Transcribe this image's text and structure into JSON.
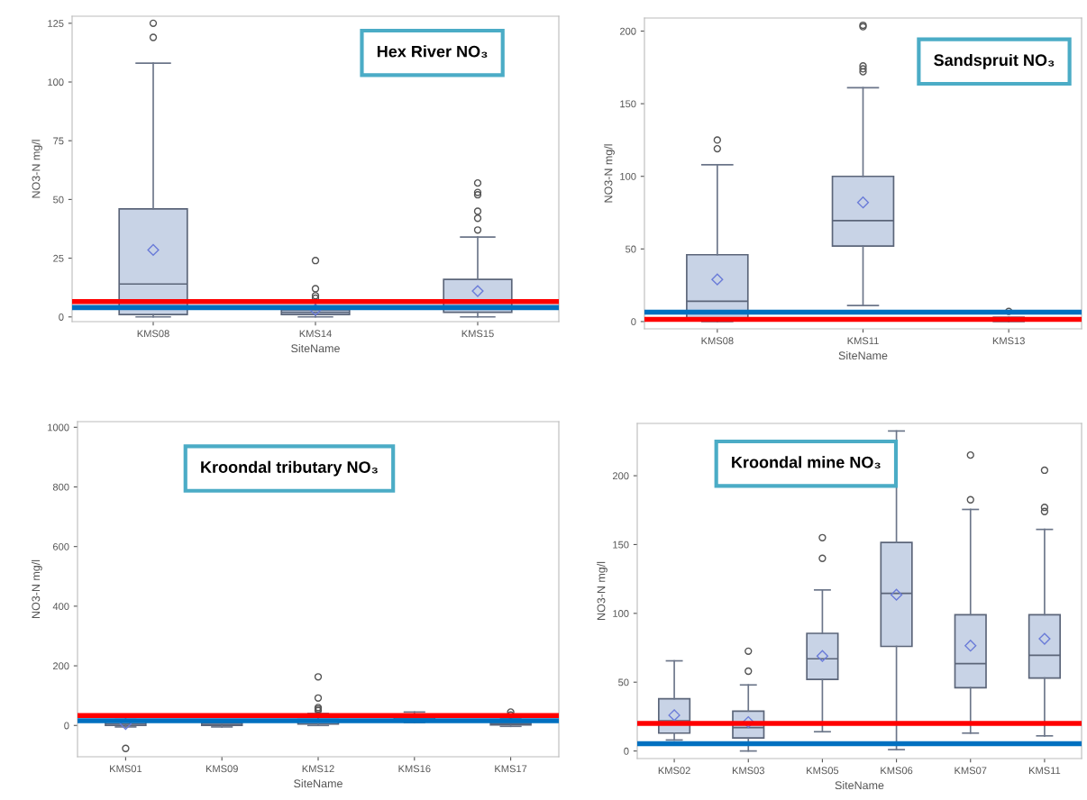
{
  "chart_data": [
    {
      "type": "box",
      "title": "Hex River NO₃",
      "xlabel": "SiteName",
      "ylabel": "NO3-N mg/l",
      "categories": [
        "KMS08",
        "KMS14",
        "KMS15"
      ],
      "ylim": [
        -2,
        128
      ],
      "yticks": [
        0,
        25,
        50,
        75,
        100,
        125
      ],
      "grid": false,
      "series": [
        {
          "color": "#c8d3e6",
          "boxes": [
            {
              "low": 0,
              "q1": 1,
              "median": 14,
              "q3": 46,
              "high": 108,
              "mean": 28.5,
              "outliers": [
                119,
                125
              ]
            },
            {
              "low": 0,
              "q1": 1,
              "median": 2,
              "q3": 3,
              "high": 7,
              "mean": 3,
              "outliers": [
                8,
                9,
                12,
                24
              ]
            },
            {
              "low": 0,
              "q1": 2,
              "median": 6,
              "q3": 16,
              "high": 34,
              "mean": 11,
              "outliers": [
                37,
                42,
                45,
                52,
                53,
                57
              ]
            }
          ]
        }
      ],
      "ref_lines": [
        {
          "axis": "y",
          "value": 6.5,
          "color": "#ff0000"
        },
        {
          "axis": "y",
          "value": 4,
          "color": "#0070c0"
        }
      ]
    },
    {
      "type": "box",
      "title": "Sandspruit NO₃",
      "xlabel": "SiteName",
      "ylabel": "NO3-N mg/l",
      "categories": [
        "KMS08",
        "KMS11",
        "KMS13"
      ],
      "ylim": [
        -5,
        209
      ],
      "yticks": [
        0,
        50,
        100,
        150,
        200
      ],
      "grid": false,
      "series": [
        {
          "color": "#c8d3e6",
          "boxes": [
            {
              "low": 0,
              "q1": 1,
              "median": 14,
              "q3": 46,
              "high": 108,
              "mean": 29,
              "outliers": [
                119,
                125
              ]
            },
            {
              "low": 11,
              "q1": 52,
              "median": 69.5,
              "q3": 100,
              "high": 161,
              "mean": 82,
              "outliers": [
                172,
                174,
                176,
                203,
                204
              ]
            },
            {
              "low": 0,
              "q1": 0.5,
              "median": 1,
              "q3": 1.5,
              "high": 3,
              "outliers": [
                7
              ]
            }
          ]
        }
      ],
      "ref_lines": [
        {
          "axis": "y",
          "value": 6.5,
          "color": "#0070c0"
        },
        {
          "axis": "y",
          "value": 1.5,
          "color": "#ff0000"
        }
      ]
    },
    {
      "type": "box",
      "title": "Kroondal tributary NO₃",
      "xlabel": "SiteName",
      "ylabel": "NO3-N mg/l",
      "categories": [
        "KMS01",
        "KMS09",
        "KMS12",
        "KMS16",
        "KMS17"
      ],
      "ylim": [
        -105,
        1019
      ],
      "yticks": [
        0,
        200,
        400,
        600,
        800,
        1000
      ],
      "grid": false,
      "series": [
        {
          "color": "#c8d3e6",
          "boxes": [
            {
              "low": -5,
              "q1": 0,
              "median": 5,
              "q3": 15,
              "high": 20,
              "mean": 5,
              "outliers": [
                -77
              ]
            },
            {
              "low": -5,
              "q1": 0,
              "median": 3,
              "q3": 8,
              "high": 15
            },
            {
              "low": 0,
              "q1": 5,
              "median": 12,
              "q3": 20,
              "high": 40,
              "outliers": [
                50,
                55,
                60,
                92,
                163
              ]
            },
            {
              "low": 10,
              "q1": 18,
              "median": 25,
              "q3": 35,
              "high": 45
            },
            {
              "low": -3,
              "q1": 2,
              "median": 5,
              "q3": 10,
              "high": 25,
              "outliers": [
                35,
                45
              ]
            }
          ]
        }
      ],
      "ref_lines": [
        {
          "axis": "y",
          "value": 33,
          "color": "#ff0000"
        },
        {
          "axis": "y",
          "value": 16,
          "color": "#0070c0"
        }
      ]
    },
    {
      "type": "box",
      "title": "Kroondal mine NO₃",
      "xlabel": "SiteName",
      "ylabel": "NO3-N mg/l",
      "categories": [
        "KMS02",
        "KMS03",
        "KMS05",
        "KMS06",
        "KMS07",
        "KMS11"
      ],
      "ylim": [
        -5.5,
        238
      ],
      "yticks": [
        0,
        50,
        100,
        150,
        200
      ],
      "grid": false,
      "series": [
        {
          "color": "#c8d3e6",
          "boxes": [
            {
              "low": 8,
              "q1": 13,
              "median": 22,
              "q3": 38,
              "high": 65.5,
              "mean": 26
            },
            {
              "low": 0,
              "q1": 9.5,
              "median": 17,
              "q3": 29,
              "high": 48,
              "mean": 21,
              "outliers": [
                58,
                72.5
              ]
            },
            {
              "low": 14,
              "q1": 52,
              "median": 67,
              "q3": 85.5,
              "high": 117,
              "mean": 69,
              "outliers": [
                140,
                155
              ]
            },
            {
              "low": 1,
              "q1": 76,
              "median": 114.5,
              "q3": 151.5,
              "high": 232.5,
              "mean": 113.5
            },
            {
              "low": 13,
              "q1": 46,
              "median": 63.5,
              "q3": 99,
              "high": 175.5,
              "mean": 76.5,
              "outliers": [
                182.5,
                215
              ]
            },
            {
              "low": 11,
              "q1": 53,
              "median": 69.5,
              "q3": 99,
              "high": 161,
              "mean": 81.5,
              "outliers": [
                174,
                177,
                204
              ]
            }
          ]
        }
      ],
      "ref_lines": [
        {
          "axis": "y",
          "value": 20,
          "color": "#ff0000"
        },
        {
          "axis": "y",
          "value": 5.3,
          "color": "#0070c0"
        }
      ]
    }
  ]
}
